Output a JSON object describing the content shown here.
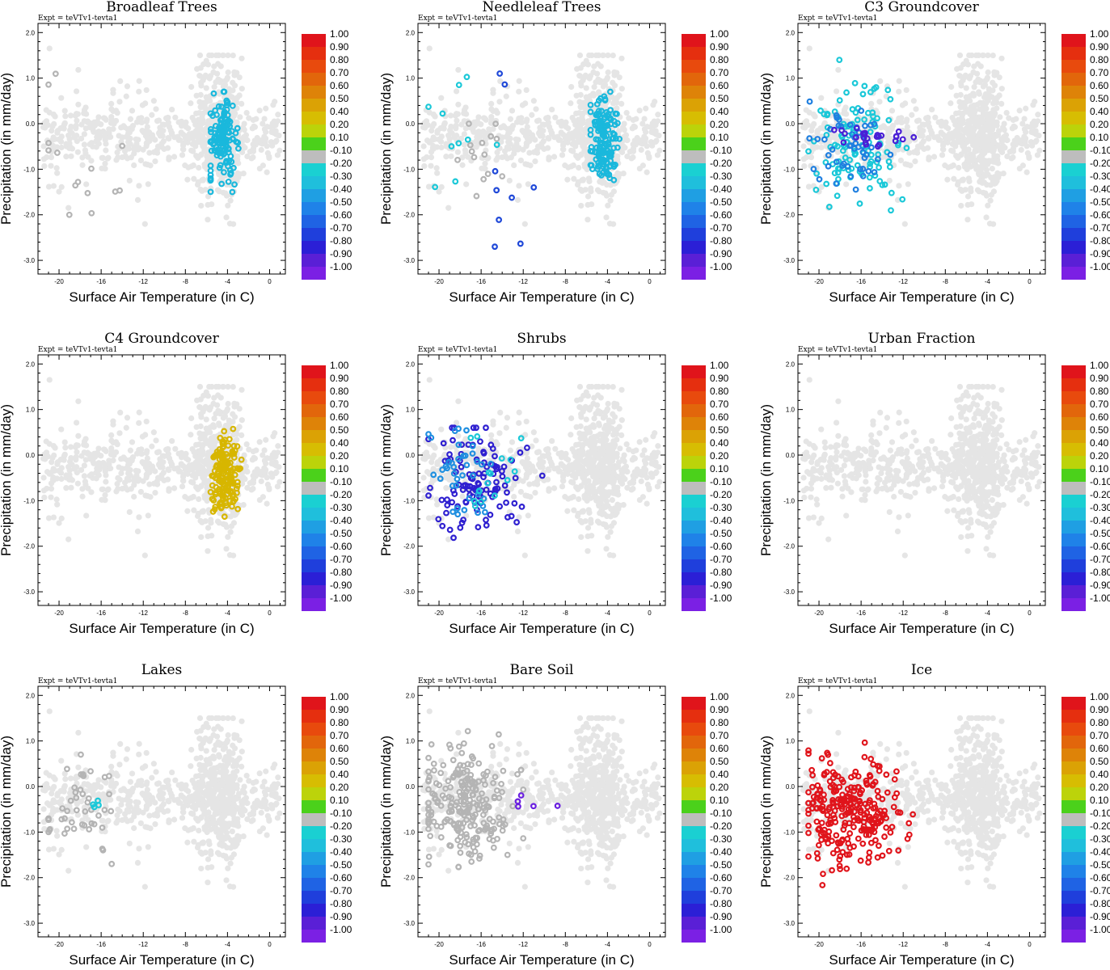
{
  "figure": {
    "expt_label": "Expt = teVTv1-tevta1",
    "xlabel": "Surface Air Temperature (in C)",
    "ylabel": "Precipitation (in mm/day)"
  },
  "colorbar": {
    "labels": [
      "1.00",
      "0.90",
      "0.80",
      "0.70",
      "0.60",
      "0.50",
      "0.40",
      "0.20",
      "0.10",
      "-0.10",
      "-0.20",
      "-0.30",
      "-0.40",
      "-0.50",
      "-0.60",
      "-0.70",
      "-0.80",
      "-0.90",
      "-1.00"
    ],
    "colors": [
      "#e0141b",
      "#e52f0f",
      "#e84a0d",
      "#e2660b",
      "#de8308",
      "#dba205",
      "#d7bd02",
      "#bcd30a",
      "#4bd11b",
      "#bdbdbd",
      "#1ad0d2",
      "#1fbfdc",
      "#1f9fe3",
      "#1f82e8",
      "#1f63e4",
      "#1f3fdc",
      "#2b1fd6",
      "#5a1fd6",
      "#7b20e4"
    ]
  },
  "chart_data": [
    {
      "type": "scatter",
      "title": "Broadleaf Trees",
      "xlim": [
        -22,
        1.5
      ],
      "ylim": [
        -3.3,
        2.2
      ],
      "xticks": [
        "-20",
        "-16",
        "-12",
        "-8",
        "-4",
        "0"
      ],
      "yticks": [
        "2.0",
        "1.0",
        "0.0",
        "-1.0",
        "-2.0",
        "-3.0"
      ],
      "background_color": "#e5e5e5",
      "highlight": [
        {
          "color": "#1ab8dc",
          "region": "x -5.5 to -2, y -1.5 to 0.7"
        },
        {
          "color": "#b4b4b4",
          "region": "x -21 to -14, y -2 to 1.4"
        }
      ]
    },
    {
      "type": "scatter",
      "title": "Needleleaf Trees",
      "xlim": [
        -22,
        1.5
      ],
      "ylim": [
        -3.3,
        2.2
      ],
      "xticks": [
        "-20",
        "-16",
        "-12",
        "-8",
        "-4",
        "0"
      ],
      "yticks": [
        "2.0",
        "1.0",
        "0.0",
        "-1.0",
        "-2.0",
        "-3.0"
      ],
      "background_color": "#e5e5e5",
      "highlight": [
        {
          "color": "#1ab8dc",
          "region": "x -5.5 to -2, y -1.5 to 0.7"
        },
        {
          "color": "#1ac8d8",
          "region": "x -21 to -14, y -1.7 to 1.3"
        },
        {
          "color": "#1f48d8",
          "region": "x -17 to -11, y -2.7 to 1.1"
        },
        {
          "color": "#b4b4b4",
          "region": "x -19 to -14, y -2 to 0"
        }
      ]
    },
    {
      "type": "scatter",
      "title": "C3 Groundcover",
      "xlim": [
        -22,
        1.5
      ],
      "ylim": [
        -3.3,
        2.2
      ],
      "xticks": [
        "-20",
        "-16",
        "-12",
        "-8",
        "-4",
        "0"
      ],
      "yticks": [
        "2.0",
        "1.0",
        "0.0",
        "-1.0",
        "-2.0",
        "-3.0"
      ],
      "background_color": "#e5e5e5",
      "highlight": [
        {
          "color": "#1ac8d8",
          "region": "x -21 to -7, y -2.7 to 1.4"
        },
        {
          "color": "#1f7fe0",
          "region": "x -21 to -8, y -1.7 to 0.5"
        },
        {
          "color": "#4a1fd6",
          "region": "x -19 to -11, y -0.5 to -0.1"
        }
      ]
    },
    {
      "type": "scatter",
      "title": "C4 Groundcover",
      "xlim": [
        -22,
        1.5
      ],
      "ylim": [
        -3.3,
        2.2
      ],
      "xticks": [
        "-20",
        "-16",
        "-12",
        "-8",
        "-4",
        "0"
      ],
      "yticks": [
        "2.0",
        "1.0",
        "0.0",
        "-1.0",
        "-2.0",
        "-3.0"
      ],
      "background_color": "#e5e5e5",
      "highlight": [
        {
          "color": "#d7b600",
          "region": "x -5.5 to -2, y -1.5 to 0.7"
        }
      ]
    },
    {
      "type": "scatter",
      "title": "Shrubs",
      "xlim": [
        -22,
        1.5
      ],
      "ylim": [
        -3.3,
        2.2
      ],
      "xticks": [
        "-20",
        "-16",
        "-12",
        "-8",
        "-4",
        "0"
      ],
      "yticks": [
        "2.0",
        "1.0",
        "0.0",
        "-1.0",
        "-2.0",
        "-3.0"
      ],
      "background_color": "#e5e5e5",
      "highlight": [
        {
          "color": "#2e1fd0",
          "region": "x -21 to -7, y -2.2 to 0.6"
        },
        {
          "color": "#1f8fe0",
          "region": "x -21 to -15, y -1.3 to 1.4"
        },
        {
          "color": "#1ac8d8",
          "region": "x -18 to -11, y -2.7 to 0.5"
        }
      ]
    },
    {
      "type": "scatter",
      "title": "Urban Fraction",
      "xlim": [
        -22,
        1.5
      ],
      "ylim": [
        -3.3,
        2.2
      ],
      "xticks": [
        "-20",
        "-16",
        "-12",
        "-8",
        "-4",
        "0"
      ],
      "yticks": [
        "2.0",
        "1.0",
        "0.0",
        "-1.0",
        "-2.0",
        "-3.0"
      ],
      "background_color": "#e5e5e5",
      "highlight": []
    },
    {
      "type": "scatter",
      "title": "Lakes",
      "xlim": [
        -22,
        1.5
      ],
      "ylim": [
        -3.3,
        2.2
      ],
      "xticks": [
        "-20",
        "-16",
        "-12",
        "-8",
        "-4",
        "0"
      ],
      "yticks": [
        "2.0",
        "1.0",
        "0.0",
        "-1.0",
        "-2.0",
        "-3.0"
      ],
      "background_color": "#e5e5e5",
      "highlight": [
        {
          "color": "#b4b4b4",
          "region": "x -21 to -15, y -1.7 to 0.7"
        },
        {
          "color": "#1ac8d8",
          "region": "x -17 to -16, y -0.5 to -0.3"
        }
      ]
    },
    {
      "type": "scatter",
      "title": "Bare Soil",
      "xlim": [
        -22,
        1.5
      ],
      "ylim": [
        -3.3,
        2.2
      ],
      "xticks": [
        "-20",
        "-16",
        "-12",
        "-8",
        "-4",
        "0"
      ],
      "yticks": [
        "2.0",
        "1.0",
        "0.0",
        "-1.0",
        "-2.0",
        "-3.0"
      ],
      "background_color": "#e5e5e5",
      "highlight": [
        {
          "color": "#b4b4b4",
          "region": "x -21 to -12, y -2.2 to 1.4"
        },
        {
          "color": "#6a1fe0",
          "region": "x -13 to -6, y -0.5 to -0.1"
        }
      ]
    },
    {
      "type": "scatter",
      "title": "Ice",
      "xlim": [
        -22,
        1.5
      ],
      "ylim": [
        -3.3,
        2.2
      ],
      "xticks": [
        "-20",
        "-16",
        "-12",
        "-8",
        "-4",
        "0"
      ],
      "yticks": [
        "2.0",
        "1.0",
        "0.0",
        "-1.0",
        "-2.0",
        "-3.0"
      ],
      "background_color": "#e5e5e5",
      "highlight": [
        {
          "color": "#e0141b",
          "region": "x -21 to -7, y -2.7 to 1.4"
        }
      ]
    }
  ]
}
